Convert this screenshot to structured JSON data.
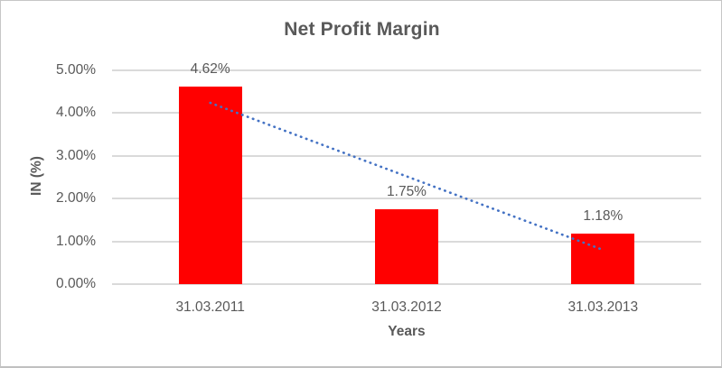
{
  "frame": {
    "background": "#ffffff",
    "border_color": "#c6c6c6"
  },
  "chart_data": {
    "type": "bar",
    "title": "Net Profit Margin",
    "xlabel": "Years",
    "ylabel": "IN (%)",
    "categories": [
      "31.03.2011",
      "31.03.2012",
      "31.03.2013"
    ],
    "values": [
      4.62,
      1.75,
      1.18
    ],
    "data_labels": [
      "4.62%",
      "1.75%",
      "1.18%"
    ],
    "ylim": [
      0,
      5
    ],
    "yticks": [
      {
        "value": 5,
        "label": "5.00%"
      },
      {
        "value": 4,
        "label": "4.00%"
      },
      {
        "value": 3,
        "label": "3.00%"
      },
      {
        "value": 2,
        "label": "2.00%"
      },
      {
        "value": 1,
        "label": "1.00%"
      },
      {
        "value": 0,
        "label": "0.00%"
      }
    ],
    "grid": true,
    "legend": "none",
    "bar_color": "#ff0000",
    "text_color": "#595959",
    "gridline_color": "#dadada",
    "trendline": {
      "type": "linear",
      "style": "dotted",
      "color": "#4472c4",
      "y_start": 4.24,
      "y_end": 0.8
    }
  }
}
